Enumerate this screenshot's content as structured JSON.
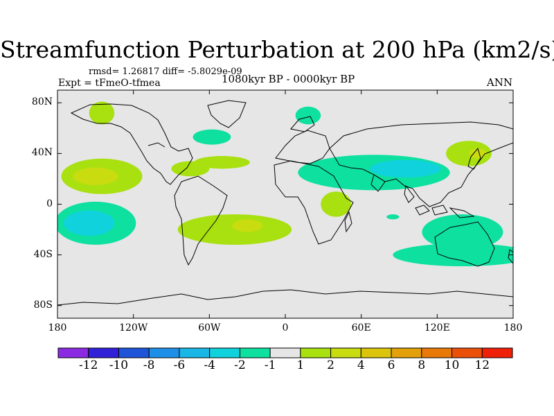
{
  "title": "Streamfunction Perturbation at 200 hPa (km2/s)",
  "stats_line": "rmsd= 1.26817 diff= -5.8029e-09",
  "experiment_line": "Expt = tFmeO-tfmea",
  "subtitle": "1080kyr BP - 0000kyr BP",
  "season": "ANN",
  "lat_ticks": [
    {
      "value": 80,
      "label": "80N"
    },
    {
      "value": 40,
      "label": "40N"
    },
    {
      "value": 0,
      "label": "0"
    },
    {
      "value": -40,
      "label": "40S"
    },
    {
      "value": -80,
      "label": "80S"
    }
  ],
  "lon_ticks": [
    {
      "value": -180,
      "label": "180"
    },
    {
      "value": -120,
      "label": "120W"
    },
    {
      "value": -60,
      "label": "60W"
    },
    {
      "value": 0,
      "label": "0"
    },
    {
      "value": 60,
      "label": "60E"
    },
    {
      "value": 120,
      "label": "120E"
    },
    {
      "value": 180,
      "label": "180"
    }
  ],
  "colorbar": {
    "colors": [
      "#8a2be2",
      "#3020d8",
      "#1e55d8",
      "#1e8fe6",
      "#1ab6e6",
      "#10d2dc",
      "#0ee0a0",
      "#e6e6e6",
      "#a8e010",
      "#c8dc10",
      "#dcc40c",
      "#e2a00a",
      "#e87808",
      "#ea5008",
      "#ee2008"
    ],
    "labels": [
      "-12",
      "-10",
      "-8",
      "-6",
      "-4",
      "-2",
      "-1",
      "1",
      "2",
      "4",
      "6",
      "8",
      "10",
      "12"
    ]
  },
  "map_data": {
    "lon_range": [
      -180,
      180
    ],
    "lat_range": [
      -90,
      90
    ],
    "background_level_color": "#e6e6e6",
    "anomaly_regions": [
      {
        "name": "north-pacific-positive",
        "level": 2,
        "center": [
          -145,
          22
        ],
        "radius": [
          32,
          14
        ]
      },
      {
        "name": "north-pacific-core",
        "level": 4,
        "center": [
          -150,
          22
        ],
        "radius": [
          18,
          7
        ]
      },
      {
        "name": "alaska-positive",
        "level": 2,
        "center": [
          -145,
          72
        ],
        "radius": [
          10,
          9
        ]
      },
      {
        "name": "north-atlantic-positive",
        "level": 2,
        "center": [
          -50,
          33
        ],
        "radius": [
          22,
          5
        ]
      },
      {
        "name": "canada-negative",
        "level": -1,
        "center": [
          -58,
          53
        ],
        "radius": [
          15,
          6
        ]
      },
      {
        "name": "greenland-sea-negative",
        "level": -1,
        "center": [
          18,
          70
        ],
        "radius": [
          10,
          7
        ]
      },
      {
        "name": "gulf-mexico-positive",
        "level": 2,
        "center": [
          -75,
          28
        ],
        "radius": [
          15,
          6
        ]
      },
      {
        "name": "asia-negative",
        "level": -1,
        "center": [
          70,
          25
        ],
        "radius": [
          60,
          14
        ]
      },
      {
        "name": "asia-core",
        "level": -2,
        "center": [
          95,
          28
        ],
        "radius": [
          28,
          7
        ]
      },
      {
        "name": "japan-positive",
        "level": 2,
        "center": [
          145,
          40
        ],
        "radius": [
          18,
          10
        ]
      },
      {
        "name": "japan-core",
        "level": 4,
        "center": [
          152,
          40
        ],
        "radius": [
          7,
          4
        ]
      },
      {
        "name": "east-africa-positive",
        "level": 2,
        "center": [
          40,
          0
        ],
        "radius": [
          12,
          10
        ]
      },
      {
        "name": "south-pacific-negative",
        "level": -1,
        "center": [
          -150,
          -15
        ],
        "radius": [
          32,
          17
        ]
      },
      {
        "name": "south-pacific-core",
        "level": -2,
        "center": [
          -155,
          -15
        ],
        "radius": [
          20,
          10
        ]
      },
      {
        "name": "south-atlantic-positive",
        "level": 2,
        "center": [
          -40,
          -20
        ],
        "radius": [
          45,
          12
        ]
      },
      {
        "name": "south-atlantic-core",
        "level": 4,
        "center": [
          -30,
          -17
        ],
        "radius": [
          12,
          5
        ]
      },
      {
        "name": "australia-negative",
        "level": -1,
        "center": [
          140,
          -22
        ],
        "radius": [
          32,
          14
        ]
      },
      {
        "name": "southern-ocean-negative",
        "level": -1,
        "center": [
          140,
          -40
        ],
        "radius": [
          55,
          9
        ]
      },
      {
        "name": "indian-ocean-negative",
        "level": -1,
        "center": [
          85,
          -10
        ],
        "radius": [
          5,
          2
        ]
      }
    ]
  }
}
